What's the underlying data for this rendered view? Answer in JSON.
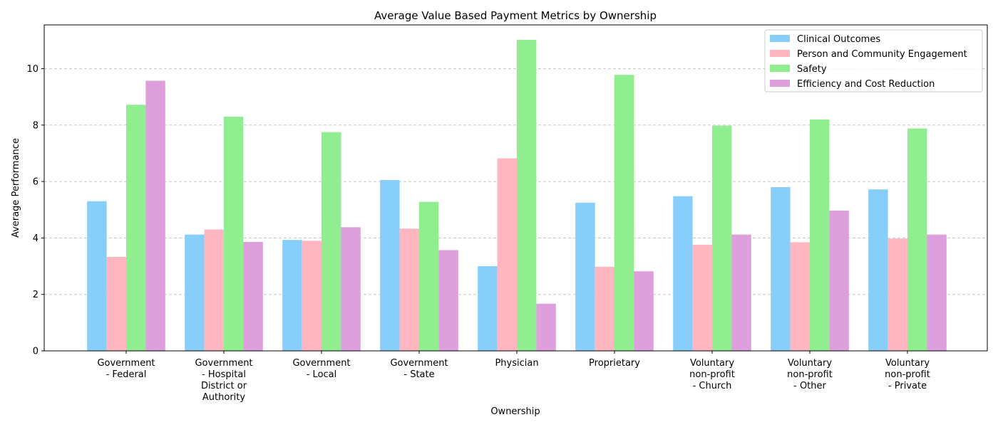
{
  "chart_data": {
    "type": "bar",
    "title": "Average Value Based Payment Metrics by Ownership",
    "xlabel": "Ownership",
    "ylabel": "Average Performance",
    "ylim": [
      0,
      11.55
    ],
    "yticks": [
      0,
      2,
      4,
      6,
      8,
      10
    ],
    "grid": "y-dashed",
    "legend_position": "top-right",
    "categories": [
      [
        "Government",
        "- Federal"
      ],
      [
        "Government",
        "- Hospital",
        "District or",
        "Authority"
      ],
      [
        "Government",
        "- Local"
      ],
      [
        "Government",
        "- State"
      ],
      [
        "Physician"
      ],
      [
        "Proprietary"
      ],
      [
        "Voluntary",
        "non-profit",
        "- Church"
      ],
      [
        "Voluntary",
        "non-profit",
        "- Other"
      ],
      [
        "Voluntary",
        "non-profit",
        "- Private"
      ]
    ],
    "series": [
      {
        "name": "Clinical Outcomes",
        "color": "#87CEFA",
        "values": [
          5.3,
          4.12,
          3.93,
          6.05,
          3.0,
          5.25,
          5.48,
          5.8,
          5.72
        ]
      },
      {
        "name": "Person and Community Engagement",
        "color": "#FFB6C1",
        "values": [
          3.33,
          4.3,
          3.9,
          4.33,
          6.82,
          2.98,
          3.76,
          3.85,
          3.98
        ]
      },
      {
        "name": "Safety",
        "color": "#90EE90",
        "values": [
          8.72,
          8.3,
          7.75,
          5.28,
          11.02,
          9.78,
          7.98,
          8.2,
          7.88
        ]
      },
      {
        "name": "Efficiency and Cost Reduction",
        "color": "#DDA0DD",
        "values": [
          9.57,
          3.86,
          4.38,
          3.57,
          1.67,
          2.82,
          4.12,
          4.97,
          4.12
        ]
      }
    ]
  }
}
